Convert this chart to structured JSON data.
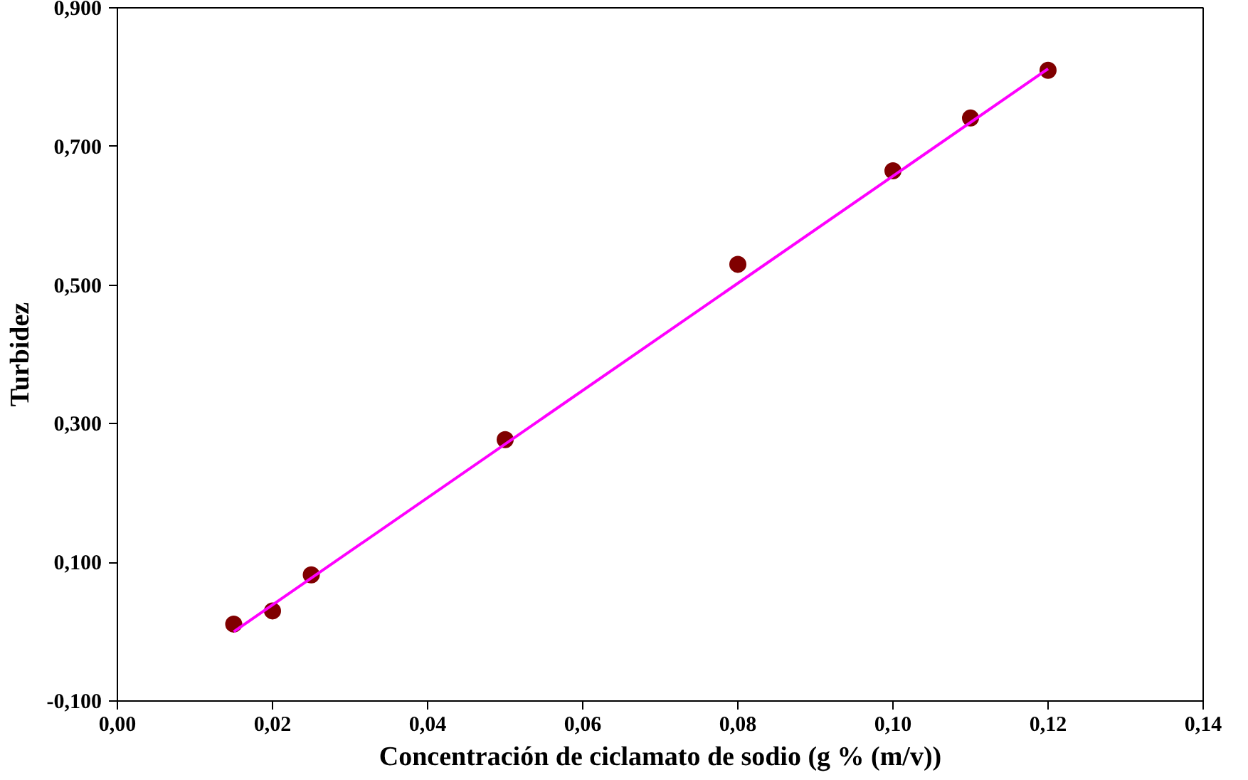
{
  "chart_data": {
    "type": "scatter",
    "xlabel": "Concentración de ciclamato de sodio (g % (m/v))",
    "ylabel": "Turbidez",
    "xlim": [
      0,
      0.14
    ],
    "ylim": [
      -0.1,
      0.9
    ],
    "xticks": [
      {
        "value": 0,
        "label": "0,00"
      },
      {
        "value": 0.02,
        "label": "0,02"
      },
      {
        "value": 0.04,
        "label": "0,04"
      },
      {
        "value": 0.06,
        "label": "0,06"
      },
      {
        "value": 0.08,
        "label": "0,08"
      },
      {
        "value": 0.1,
        "label": "0,10"
      },
      {
        "value": 0.12,
        "label": "0,12"
      },
      {
        "value": 0.14,
        "label": "0,14"
      }
    ],
    "yticks": [
      {
        "value": -0.1,
        "label": "-0,100"
      },
      {
        "value": 0.1,
        "label": "0,100"
      },
      {
        "value": 0.3,
        "label": "0,300"
      },
      {
        "value": 0.5,
        "label": "0,500"
      },
      {
        "value": 0.7,
        "label": "0,700"
      },
      {
        "value": 0.9,
        "label": "0,900"
      }
    ],
    "grid": false,
    "series": [
      {
        "marker": "circle",
        "color": "#800000",
        "x": [
          0.015,
          0.02,
          0.025,
          0.05,
          0.08,
          0.1,
          0.11,
          0.12
        ],
        "values": [
          0.011,
          0.03,
          0.082,
          0.277,
          0.53,
          0.665,
          0.741,
          0.81
        ]
      },
      {
        "type": "line",
        "marker": "none",
        "color": "#ff00ff",
        "x": [
          0.015,
          0.12
        ],
        "values": [
          0.0,
          0.812
        ]
      }
    ]
  }
}
